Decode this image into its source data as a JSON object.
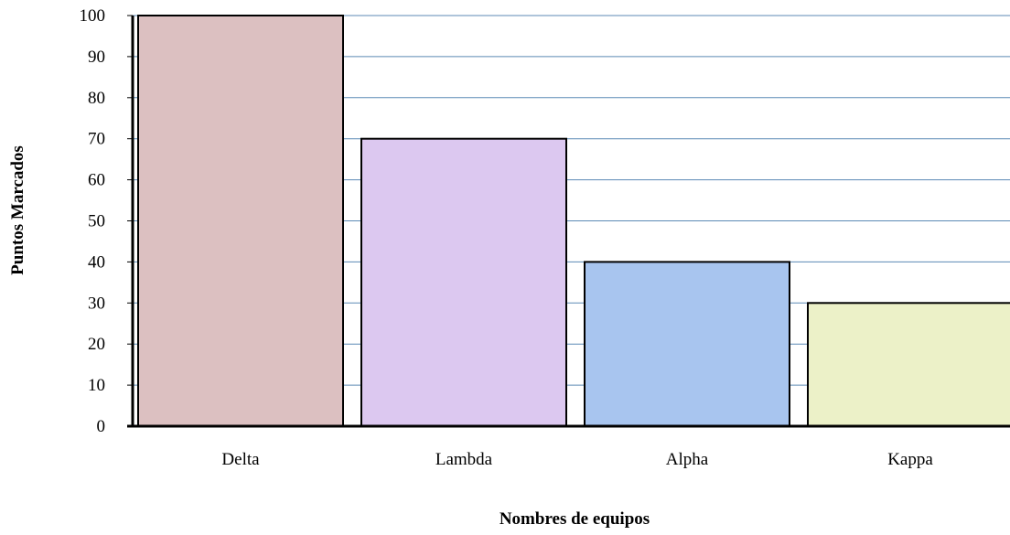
{
  "chart_data": {
    "type": "bar",
    "categories": [
      "Delta",
      "Lambda",
      "Alpha",
      "Kappa"
    ],
    "values": [
      100,
      70,
      40,
      30
    ],
    "xlabel": "Nombres de equipos",
    "ylabel": "Puntos Marcados",
    "ylim": [
      0,
      100
    ],
    "yticks": [
      0,
      10,
      20,
      30,
      40,
      50,
      60,
      70,
      80,
      90,
      100
    ],
    "grid": true,
    "legend": "none",
    "colors": {
      "bars": [
        "#dcc0c1",
        "#dcc8f0",
        "#a8c5ef",
        "#ecf1c8"
      ],
      "gridline": "#5c8ab5",
      "bar_outline": "#000000",
      "axis": "#000000"
    }
  }
}
